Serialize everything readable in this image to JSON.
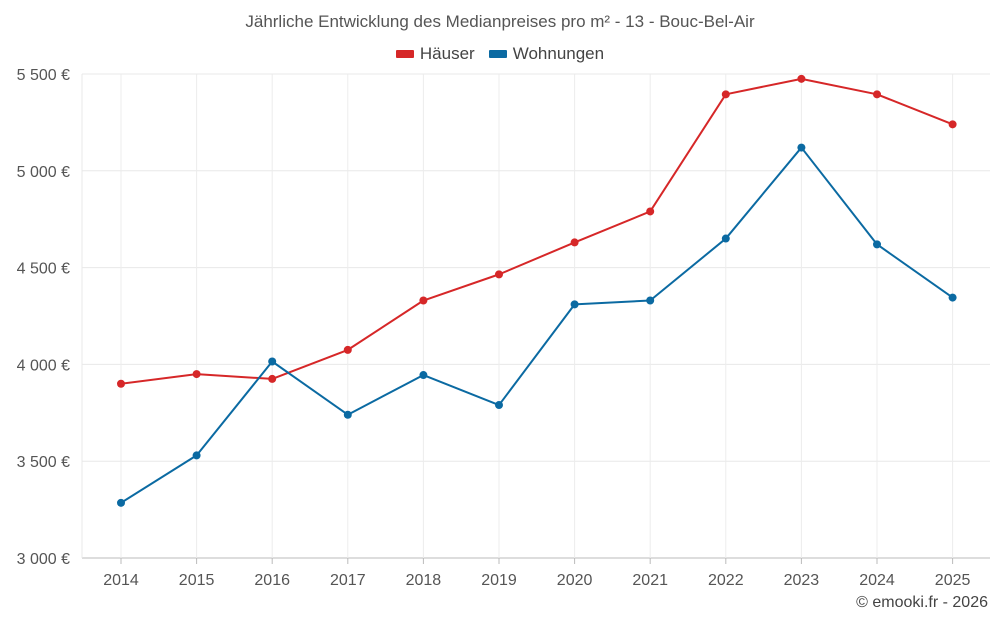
{
  "chart_data": {
    "type": "line",
    "title": "Jährliche Entwicklung des Medianpreises pro m² - 13 - Bouc-Bel-Air",
    "xlabel": "",
    "ylabel": "",
    "categories": [
      "2014",
      "2015",
      "2016",
      "2017",
      "2018",
      "2019",
      "2020",
      "2021",
      "2022",
      "2023",
      "2024",
      "2025"
    ],
    "ylim": [
      3000,
      5500
    ],
    "yticks": [
      3000,
      3500,
      4000,
      4500,
      5000,
      5500
    ],
    "ytick_labels": [
      "3 000 €",
      "3 500 €",
      "4 000 €",
      "4 500 €",
      "5 000 €",
      "5 500 €"
    ],
    "grid": true,
    "legend_position": "top-center",
    "series": [
      {
        "name": "Häuser",
        "color": "#d62728",
        "values": [
          3900,
          3950,
          3925,
          4075,
          4330,
          4465,
          4630,
          4790,
          5395,
          5475,
          5395,
          5240
        ]
      },
      {
        "name": "Wohnungen",
        "color": "#0b6aa2",
        "values": [
          3285,
          3530,
          4015,
          3740,
          3945,
          3790,
          4310,
          4330,
          4650,
          5120,
          4620,
          4345
        ]
      }
    ]
  },
  "footer": {
    "copyright": "© emooki.fr - 2026"
  }
}
